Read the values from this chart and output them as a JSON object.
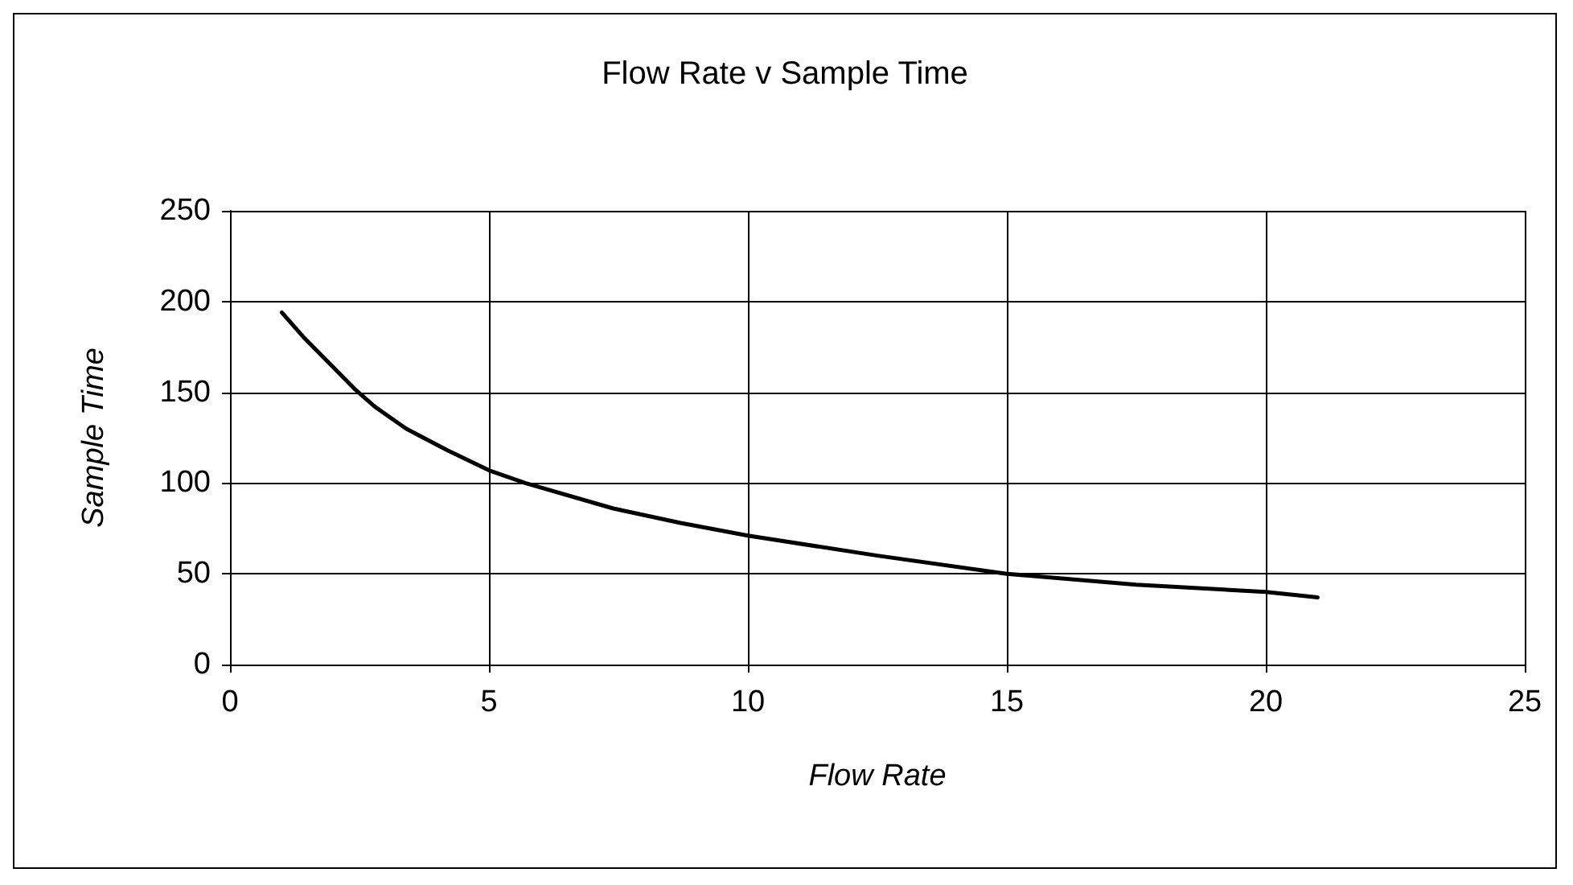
{
  "chart_data": {
    "type": "line",
    "title": "Flow Rate v Sample Time",
    "xlabel": "Flow Rate",
    "ylabel": "Sample Time",
    "x": [
      1,
      1.4,
      2.4,
      2.8,
      3.4,
      4.2,
      5,
      5.7,
      7.4,
      8.7,
      10,
      12.5,
      15,
      17.5,
      20,
      21
    ],
    "series": [
      {
        "color": "#000000",
        "values": [
          194,
          181,
          152,
          142,
          130,
          118,
          107,
          100,
          86,
          78,
          71,
          60,
          50,
          44,
          40,
          37
        ]
      }
    ],
    "xlim": [
      0,
      25
    ],
    "xticks": [
      0,
      5,
      10,
      15,
      20,
      25
    ],
    "ylim": [
      0,
      250
    ],
    "yticks": [
      0,
      50,
      100,
      150,
      200,
      250
    ],
    "grid": true,
    "marker": "none",
    "line_style": "solid"
  }
}
